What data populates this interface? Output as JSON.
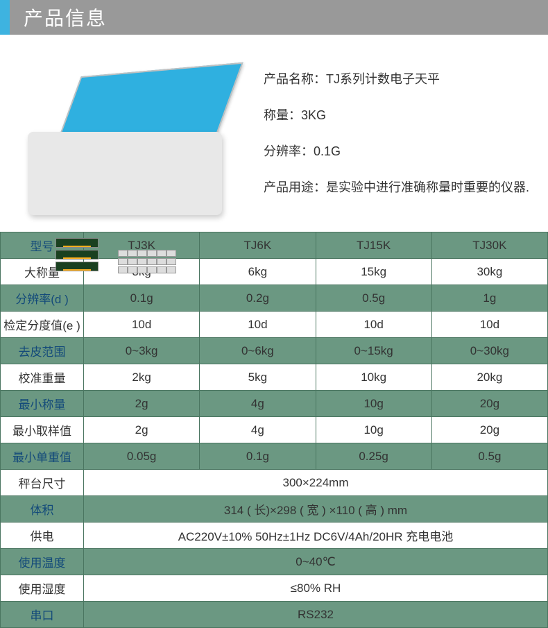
{
  "header": {
    "title": "产品信息",
    "accent_color": "#3eb3e0",
    "bg_color": "#999999"
  },
  "info": {
    "name_label": "产品名称：",
    "name_value": "TJ系列计数电子天平",
    "weight_label": "称量：",
    "weight_value": "3KG",
    "res_label": "分辨率：",
    "res_value": "0.1G",
    "use_label": "产品用途：",
    "use_value": "是实验中进行准确称量时重要的仪器."
  },
  "table": {
    "colors": {
      "green_bg": "#6b9882",
      "border": "#4a7560",
      "header_text": "#134a7a"
    },
    "header": [
      "型号",
      "TJ3K",
      "TJ6K",
      "TJ15K",
      "TJ30K"
    ],
    "rows": [
      {
        "style": "white",
        "label": "大称量",
        "cells": [
          "3kg",
          "6kg",
          "15kg",
          "30kg"
        ]
      },
      {
        "style": "green",
        "label": "分辨率(d )",
        "cells": [
          "0.1g",
          "0.2g",
          "0.5g",
          "1g"
        ]
      },
      {
        "style": "white",
        "label": "检定分度值(e )",
        "cells": [
          "10d",
          "10d",
          "10d",
          "10d"
        ]
      },
      {
        "style": "green",
        "label": "去皮范围",
        "cells": [
          "0~3kg",
          "0~6kg",
          "0~15kg",
          "0~30kg"
        ]
      },
      {
        "style": "white",
        "label": "校准重量",
        "cells": [
          "2kg",
          "5kg",
          "10kg",
          "20kg"
        ]
      },
      {
        "style": "green",
        "label": "最小称量",
        "cells": [
          "2g",
          "4g",
          "10g",
          "20g"
        ]
      },
      {
        "style": "white",
        "label": "最小取样值",
        "cells": [
          "2g",
          "4g",
          "10g",
          "20g"
        ]
      },
      {
        "style": "green",
        "label": "最小单重值",
        "cells": [
          "0.05g",
          "0.1g",
          "0.25g",
          "0.5g"
        ]
      }
    ],
    "full_rows": [
      {
        "style": "white",
        "label": "秤台尺寸",
        "value": "300×224mm"
      },
      {
        "style": "green",
        "label": "体积",
        "value": "314 ( 长)×298 ( 宽 ) ×110 ( 高 )  mm"
      },
      {
        "style": "white",
        "label": "供电",
        "value": "AC220V±10%    50Hz±1Hz    DC6V/4Ah/20HR 充电电池"
      },
      {
        "style": "green",
        "label": "使用温度",
        "value": "0~40℃"
      },
      {
        "style": "white",
        "label": "使用湿度",
        "value": "≤80% RH"
      },
      {
        "style": "green",
        "label": "串口",
        "value": "RS232"
      }
    ]
  }
}
